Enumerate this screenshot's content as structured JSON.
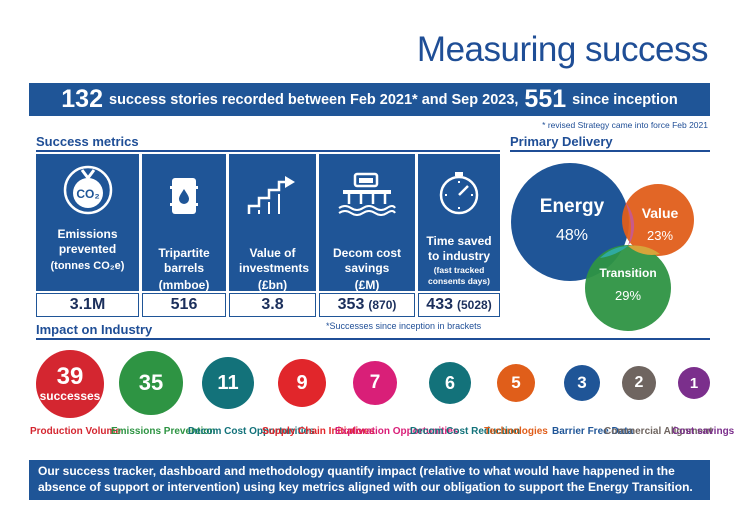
{
  "title": "Measuring success",
  "banner": {
    "count": "132",
    "text1": "success stories recorded between Feb 2021* and Sep 2023,",
    "count2": "551",
    "text2": "since inception"
  },
  "footnote": "* revised Strategy came into force Feb 2021",
  "success_metrics": {
    "heading": "Success metrics",
    "cards": [
      {
        "label_main": "Emissions prevented",
        "label_unit": "(tonnes CO₂e)",
        "value": "3.1M",
        "bracket": "",
        "icon": "co2-icon"
      },
      {
        "label_main": "Tripartite barrels",
        "label_unit": "(mmboe)",
        "value": "516",
        "bracket": "",
        "icon": "oil-barrel-icon"
      },
      {
        "label_main": "Value of investments",
        "label_unit": "(£bn)",
        "value": "3.8",
        "bracket": "",
        "icon": "stairs-arrow-icon"
      },
      {
        "label_main": "Decom cost savings",
        "label_unit": "(£M)",
        "value": "353",
        "bracket": "(870)",
        "icon": "platform-icon"
      },
      {
        "label_main": "Time saved to industry",
        "label_unit": "(fast tracked consents days)",
        "value": "433",
        "bracket": "(5028)",
        "icon": "stopwatch-icon"
      }
    ],
    "note": "*Successes since inception in brackets"
  },
  "primary_delivery": {
    "heading": "Primary Delivery",
    "segments": [
      {
        "name": "Energy",
        "percent": "48%",
        "color": "#1f5597"
      },
      {
        "name": "Value",
        "percent": "23%",
        "color": "#e05e1a"
      },
      {
        "name": "Transition",
        "percent": "29%",
        "color": "#2e9443"
      }
    ]
  },
  "impact": {
    "heading": "Impact on Industry",
    "successes_label": "successes",
    "items": [
      {
        "value": "39",
        "label": "Production Volume",
        "color": "#d42630"
      },
      {
        "value": "35",
        "label": "Emissions Prevention",
        "color": "#2e9443"
      },
      {
        "value": "11",
        "label": "Decom Cost Opportunities",
        "color": "#13727a"
      },
      {
        "value": "9",
        "label": "Supply Chain Initiatives",
        "color": "#e1262b"
      },
      {
        "value": "7",
        "label": "Exploration Opportunities",
        "color": "#d91f78"
      },
      {
        "value": "6",
        "label": "Decom Cost Reduction",
        "color": "#13727a"
      },
      {
        "value": "5",
        "label": "Technologies",
        "color": "#e05e1a"
      },
      {
        "value": "3",
        "label": "Barrier Free Data",
        "color": "#1f5597"
      },
      {
        "value": "2",
        "label": "Commercial Alignment",
        "color": "#6f6560"
      },
      {
        "value": "1",
        "label": "Cost savings",
        "color": "#7b2f8c"
      }
    ]
  },
  "bottom_text": "Our success tracker, dashboard and methodology quantify impact (relative to what would have happened in the absence of support or intervention) using key metrics aligned with our obligation to support the Energy Transition."
}
